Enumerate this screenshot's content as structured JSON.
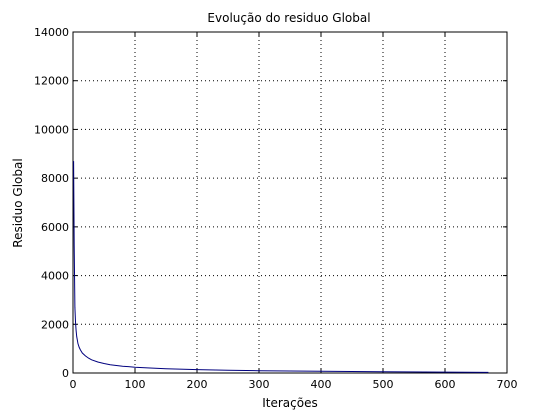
{
  "chart_data": {
    "type": "line",
    "title": "Evolução do residuo Global",
    "xlabel": "Iterações",
    "ylabel": "Residuo Global",
    "xlim": [
      0,
      700
    ],
    "ylim": [
      0,
      14000
    ],
    "xticks": [
      0,
      100,
      200,
      300,
      400,
      500,
      600,
      700
    ],
    "yticks": [
      0,
      2000,
      4000,
      6000,
      8000,
      10000,
      12000,
      14000
    ],
    "grid": true,
    "line_color": "#00007f",
    "series": [
      {
        "x": [
          1,
          2,
          3,
          4,
          5,
          6,
          8,
          10,
          12,
          15,
          20,
          25,
          30,
          40,
          50,
          60,
          80,
          100,
          120,
          150,
          200,
          250,
          300,
          400,
          500,
          600,
          670
        ],
        "y": [
          8700,
          5200,
          2700,
          2100,
          1750,
          1500,
          1200,
          1050,
          950,
          820,
          700,
          610,
          540,
          450,
          390,
          340,
          280,
          240,
          210,
          175,
          140,
          115,
          95,
          70,
          50,
          35,
          25
        ]
      }
    ]
  }
}
